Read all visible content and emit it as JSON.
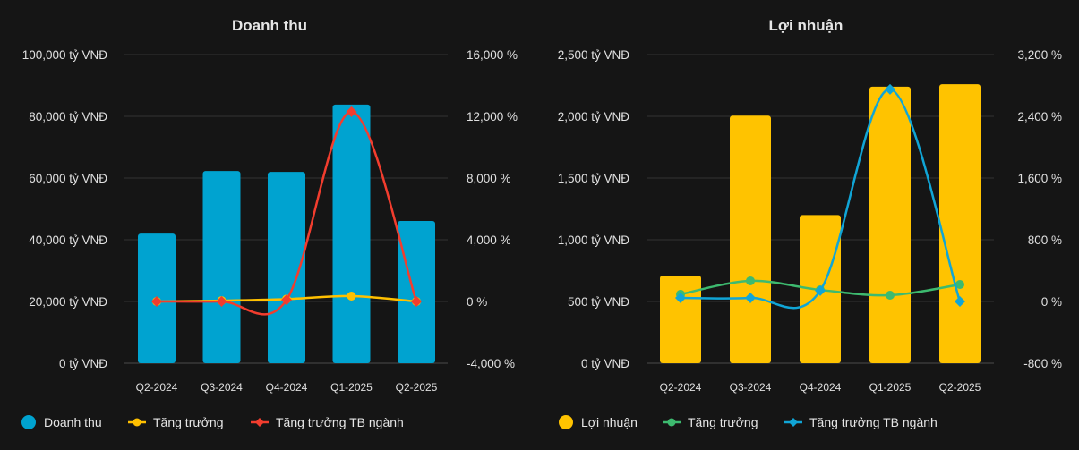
{
  "chart_data": [
    {
      "type": "bar",
      "title": "Doanh thu",
      "categories": [
        "Q2-2024",
        "Q3-2024",
        "Q4-2024",
        "Q1-2025",
        "Q2-2025"
      ],
      "left_axis": {
        "ylim": [
          0,
          100000
        ],
        "ticks": [
          "0 tỷ VNĐ",
          "20,000 tỷ VNĐ",
          "40,000 tỷ VNĐ",
          "60,000 tỷ VNĐ",
          "80,000 tỷ VNĐ",
          "100,000 tỷ VNĐ"
        ]
      },
      "right_axis": {
        "ylim": [
          -4000,
          16000
        ],
        "ticks": [
          "-4,000 %",
          "0 %",
          "4,000 %",
          "8,000 %",
          "12,000 %",
          "16,000 %"
        ]
      },
      "grid": true,
      "legend_position": "bottom-left",
      "series": [
        {
          "name": "Doanh thu",
          "kind": "bar",
          "axis": "left",
          "color": "#00a3d0",
          "values": [
            42000,
            62300,
            62000,
            83800,
            46100
          ]
        },
        {
          "name": "Tăng trưởng",
          "kind": "line",
          "marker": "circle",
          "axis": "right",
          "color": "#ffc000",
          "values": [
            0,
            50,
            150,
            350,
            0
          ]
        },
        {
          "name": "Tăng trưởng TB ngành",
          "kind": "line",
          "marker": "diamond",
          "axis": "right",
          "color": "#f23d2e",
          "values": [
            0,
            0,
            100,
            12300,
            0
          ]
        }
      ]
    },
    {
      "type": "bar",
      "title": "Lợi nhuận",
      "categories": [
        "Q2-2024",
        "Q3-2024",
        "Q4-2024",
        "Q1-2025",
        "Q2-2025"
      ],
      "left_axis": {
        "ylim": [
          0,
          2500
        ],
        "ticks": [
          "0 tỷ VNĐ",
          "500 tỷ VNĐ",
          "1,000 tỷ VNĐ",
          "1,500 tỷ VNĐ",
          "2,000 tỷ VNĐ",
          "2,500 tỷ VNĐ"
        ]
      },
      "right_axis": {
        "ylim": [
          -800,
          3200
        ],
        "ticks": [
          "-800 %",
          "0 %",
          "800 %",
          "1,600 %",
          "2,400 %",
          "3,200 %"
        ]
      },
      "grid": true,
      "legend_position": "bottom-left",
      "series": [
        {
          "name": "Lợi nhuận",
          "kind": "bar",
          "axis": "left",
          "color": "#ffc300",
          "values": [
            710,
            2005,
            1200,
            2240,
            2260
          ]
        },
        {
          "name": "Tăng trưởng",
          "kind": "line",
          "marker": "circle",
          "axis": "right",
          "color": "#3dba6f",
          "values": [
            93,
            267,
            150,
            81,
            220
          ]
        },
        {
          "name": "Tăng trưởng TB ngành",
          "kind": "line",
          "marker": "diamond",
          "axis": "right",
          "color": "#10a5d6",
          "values": [
            46,
            46,
            140,
            2750,
            0
          ]
        }
      ]
    }
  ]
}
